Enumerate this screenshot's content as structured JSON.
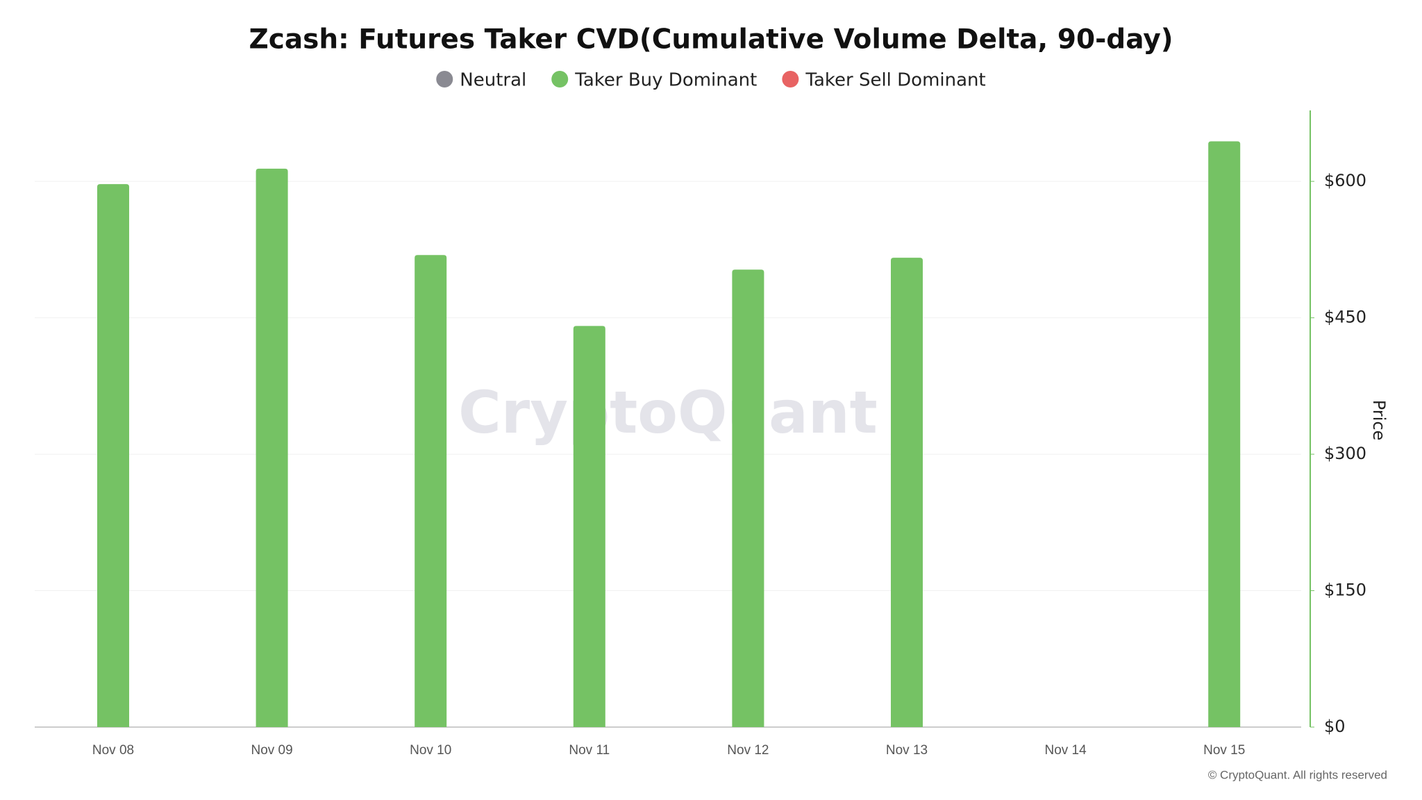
{
  "chart_data": {
    "type": "bar",
    "title": "Zcash: Futures Taker CVD(Cumulative Volume Delta, 90-day)",
    "categories": [
      "Nov 08",
      "Nov 09",
      "Nov 10",
      "Nov 11",
      "Nov 12",
      "Nov 13",
      "Nov 14",
      "Nov 15"
    ],
    "series": [
      {
        "name": "Neutral",
        "color": "#8a8a92",
        "values": [
          null,
          null,
          null,
          null,
          null,
          null,
          null,
          null
        ]
      },
      {
        "name": "Taker Buy Dominant",
        "color": "#75c264",
        "values": [
          597,
          614,
          519,
          441,
          503,
          516,
          null,
          644
        ]
      },
      {
        "name": "Taker Sell Dominant",
        "color": "#e86363",
        "values": [
          null,
          null,
          null,
          null,
          null,
          null,
          null,
          null
        ]
      }
    ],
    "y_axis_label": "Price",
    "ylim": [
      0,
      678
    ],
    "yticks": [
      {
        "value": 0,
        "label": "$0"
      },
      {
        "value": 150,
        "label": "$150"
      },
      {
        "value": 300,
        "label": "$300"
      },
      {
        "value": 450,
        "label": "$450"
      },
      {
        "value": 600,
        "label": "$600"
      }
    ],
    "grid": true,
    "axis_color": "#75c264",
    "watermark": "CryptoQuant",
    "footer": "© CryptoQuant. All rights reserved"
  }
}
